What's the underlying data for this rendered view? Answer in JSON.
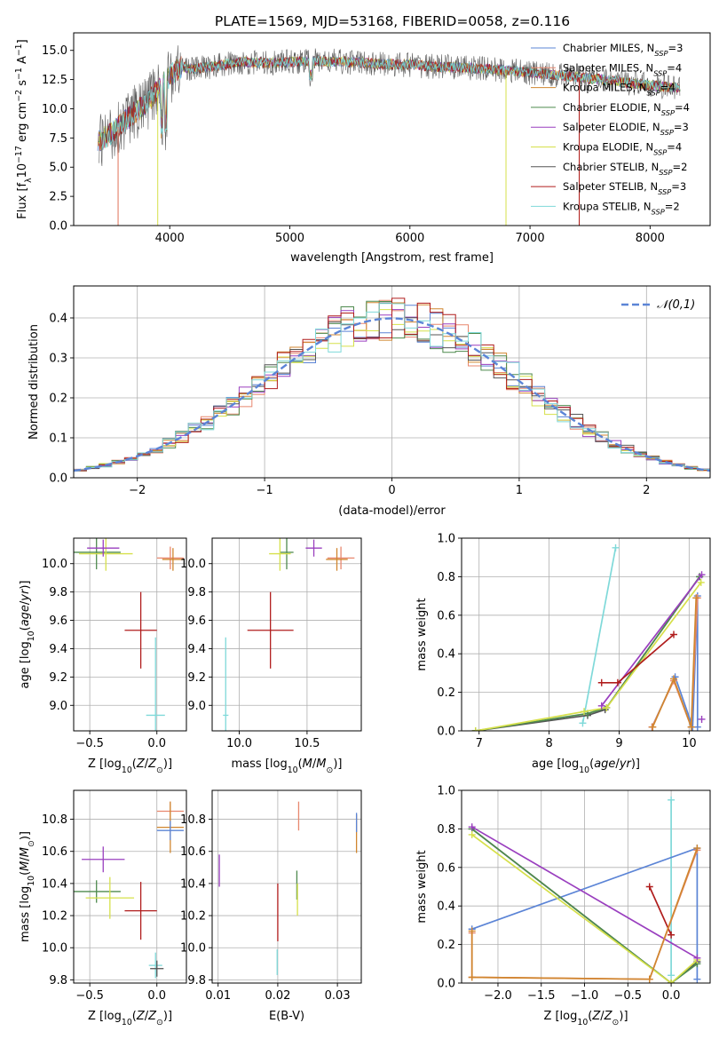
{
  "figure_title": "PLATE=1569, MJD=53168, FIBERID=0058, z=0.116",
  "chart_data": [
    {
      "id": "spectrum",
      "type": "line",
      "title": "PLATE=1569, MJD=53168, FIBERID=0058, z=0.116",
      "xlabel": "wavelength [Angstrom, rest frame]",
      "ylabel": "Flux [f_λ 10^-17 erg cm^-2 s^-1 A^-1]",
      "xlim": [
        3200,
        8500
      ],
      "ylim": [
        0,
        16.5
      ],
      "xticks": [
        4000,
        5000,
        6000,
        7000,
        8000
      ],
      "yticks": [
        0.0,
        2.5,
        5.0,
        7.5,
        10.0,
        12.5,
        15.0
      ],
      "grid": false,
      "legend_position": "top-right",
      "continuum": {
        "x": [
          3400,
          3500,
          3600,
          3700,
          3800,
          3900,
          4000,
          4100,
          4200,
          4400,
          4600,
          4800,
          5000,
          5200,
          5500,
          5800,
          6000,
          6200,
          6500,
          6800,
          7000,
          7300,
          7600,
          8000,
          8250
        ],
        "y": [
          7.2,
          7.8,
          8.7,
          9.6,
          10.4,
          11.6,
          12.8,
          13.6,
          13.4,
          13.7,
          14.0,
          13.9,
          14.0,
          14.1,
          14.0,
          13.8,
          13.8,
          13.6,
          13.5,
          13.3,
          13.1,
          12.8,
          12.5,
          12.0,
          11.8
        ]
      },
      "series": [
        {
          "name": "Chabrier MILES, N_SSP=3",
          "color": "#5b84d6"
        },
        {
          "name": "Salpeter MILES, N_SSP=4",
          "color": "#e8876e"
        },
        {
          "name": "Kroupa MILES, N_SSP=4",
          "color": "#d0862f"
        },
        {
          "name": "Chabrier ELODIE, N_SSP=4",
          "color": "#4e8a4e"
        },
        {
          "name": "Salpeter ELODIE, N_SSP=3",
          "color": "#9a3fbf"
        },
        {
          "name": "Kroupa ELODIE, N_SSP=4",
          "color": "#d6e04a"
        },
        {
          "name": "Chabrier STELIB, N_SSP=2",
          "color": "#555555"
        },
        {
          "name": "Salpeter STELIB, N_SSP=3",
          "color": "#b01c1c"
        },
        {
          "name": "Kroupa STELIB, N_SSP=2",
          "color": "#7fd9d9"
        }
      ]
    },
    {
      "id": "residuals",
      "type": "histogram",
      "xlabel": "(data-model)/error",
      "ylabel": "Normed distribution",
      "xlim": [
        -2.5,
        2.5
      ],
      "ylim": [
        0,
        0.48
      ],
      "xticks": [
        -2,
        -1,
        0,
        1,
        2
      ],
      "yticks": [
        0.0,
        0.1,
        0.2,
        0.3,
        0.4
      ],
      "grid": true,
      "legend": "𝒩(0,1)",
      "legend_position": "top-right",
      "reference_curve_color": "#5b84d6",
      "bin_width": 0.1,
      "bin_start": -2.5
    },
    {
      "id": "age_vs_Z",
      "type": "scatter",
      "xlabel": "Z [log10(Z/Z☉)]",
      "ylabel": "age  [log10(age/yr)]",
      "xlim": [
        -0.62,
        0.22
      ],
      "ylim": [
        8.82,
        10.18
      ],
      "xticks": [
        -0.5,
        0.0
      ],
      "xtick_labels": [
        "−0.5",
        "0.0"
      ],
      "yticks": [
        9.0,
        9.2,
        9.4,
        9.6,
        9.8,
        10.0
      ],
      "grid": true,
      "points": [
        {
          "x": -0.12,
          "y": 9.53,
          "xerr": 0.12,
          "yerr": 0.27,
          "color": "#b01c1c"
        },
        {
          "x": -0.01,
          "y": 8.93,
          "xerr": 0.07,
          "yerr": 0.55,
          "color": "#7fd9d9"
        },
        {
          "x": -0.45,
          "y": 10.08,
          "xerr": 0.18,
          "yerr": 0.12,
          "color": "#4e8a4e"
        },
        {
          "x": -0.38,
          "y": 10.07,
          "xerr": 0.2,
          "yerr": 0.12,
          "color": "#d6e04a"
        },
        {
          "x": -0.4,
          "y": 10.11,
          "xerr": 0.12,
          "yerr": 0.06,
          "color": "#9a3fbf"
        },
        {
          "x": 0.1,
          "y": 10.04,
          "xerr": 0.1,
          "yerr": 0.08,
          "color": "#e8876e"
        },
        {
          "x": 0.12,
          "y": 10.03,
          "xerr": 0.08,
          "yerr": 0.08,
          "color": "#d0862f"
        }
      ]
    },
    {
      "id": "age_vs_mass",
      "type": "scatter",
      "xlabel": "mass [log10(M/M☉)]",
      "ylabel": "",
      "xlim": [
        9.8,
        10.9
      ],
      "ylim": [
        8.82,
        10.18
      ],
      "xticks": [
        10.0,
        10.5
      ],
      "yticks": [
        9.0,
        9.2,
        9.4,
        9.6,
        9.8,
        10.0
      ],
      "grid": true,
      "points": [
        {
          "x": 10.23,
          "y": 9.53,
          "xerr": 0.17,
          "yerr": 0.27,
          "color": "#b01c1c"
        },
        {
          "x": 9.9,
          "y": 8.93,
          "xerr": 0.02,
          "yerr": 0.55,
          "color": "#7fd9d9"
        },
        {
          "x": 10.35,
          "y": 10.08,
          "xerr": 0.05,
          "yerr": 0.12,
          "color": "#4e8a4e"
        },
        {
          "x": 10.3,
          "y": 10.07,
          "xerr": 0.08,
          "yerr": 0.12,
          "color": "#d6e04a"
        },
        {
          "x": 10.55,
          "y": 10.11,
          "xerr": 0.06,
          "yerr": 0.06,
          "color": "#9a3fbf"
        },
        {
          "x": 10.75,
          "y": 10.04,
          "xerr": 0.1,
          "yerr": 0.08,
          "color": "#e8876e"
        },
        {
          "x": 10.72,
          "y": 10.03,
          "xerr": 0.08,
          "yerr": 0.08,
          "color": "#d0862f"
        }
      ]
    },
    {
      "id": "massweight_vs_age",
      "type": "line",
      "xlabel": "age  [log10(age/yr)]",
      "ylabel": "mass weight",
      "xlim": [
        6.75,
        10.3
      ],
      "ylim": [
        0,
        1.0
      ],
      "xticks": [
        7,
        8,
        9,
        10
      ],
      "yticks": [
        0.0,
        0.2,
        0.4,
        0.6,
        0.8,
        1.0
      ],
      "grid": true,
      "series": [
        {
          "color": "#7fd9d9",
          "x": [
            8.48,
            8.95
          ],
          "y": [
            0.04,
            0.95
          ]
        },
        {
          "color": "#555555",
          "x": [
            6.95,
            8.55,
            8.8,
            10.15
          ],
          "y": [
            0.0,
            0.08,
            0.11,
            0.8
          ]
        },
        {
          "color": "#4e8a4e",
          "x": [
            6.95,
            8.55,
            8.82,
            10.15
          ],
          "y": [
            0.0,
            0.09,
            0.12,
            0.8
          ]
        },
        {
          "color": "#d6e04a",
          "x": [
            6.95,
            8.5,
            8.82,
            10.17
          ],
          "y": [
            0.0,
            0.1,
            0.12,
            0.77
          ]
        },
        {
          "color": "#9a3fbf",
          "x": [
            8.75,
            10.18
          ],
          "y": [
            0.13,
            0.81
          ]
        },
        {
          "color": "#b01c1c",
          "x": [
            8.75,
            8.98,
            9.78
          ],
          "y": [
            0.25,
            0.25,
            0.5
          ]
        },
        {
          "color": "#5b84d6",
          "x": [
            9.47,
            9.8,
            10.05,
            10.12,
            10.12
          ],
          "y": [
            0.02,
            0.28,
            0.02,
            0.7,
            0.02
          ]
        },
        {
          "color": "#e8876e",
          "x": [
            9.47,
            9.78,
            10.03,
            10.12
          ],
          "y": [
            0.02,
            0.26,
            0.02,
            0.69
          ]
        },
        {
          "color": "#d0862f",
          "x": [
            9.48,
            9.78,
            10.03,
            10.1
          ],
          "y": [
            0.02,
            0.27,
            0.02,
            0.69
          ]
        },
        {
          "color": "#9a3fbf",
          "x": [
            10.18
          ],
          "y": [
            0.06
          ]
        }
      ]
    },
    {
      "id": "mass_vs_Z",
      "type": "scatter",
      "xlabel": "Z [log10(Z/Z☉)]",
      "ylabel": "mass [log10(M/M☉)]",
      "xlim": [
        -0.62,
        0.22
      ],
      "ylim": [
        9.78,
        10.98
      ],
      "xticks": [
        -0.5,
        0.0
      ],
      "xtick_labels": [
        "−0.5",
        "0.0"
      ],
      "yticks": [
        9.8,
        10.0,
        10.2,
        10.4,
        10.6,
        10.8
      ],
      "grid": true,
      "points": [
        {
          "x": -0.12,
          "y": 10.23,
          "xerr": 0.12,
          "yerr": 0.18,
          "color": "#b01c1c"
        },
        {
          "x": -0.01,
          "y": 9.89,
          "xerr": 0.05,
          "yerr": 0.08,
          "color": "#7fd9d9"
        },
        {
          "x": 0.0,
          "y": 9.87,
          "xerr": 0.05,
          "yerr": 0.05,
          "color": "#555555"
        },
        {
          "x": -0.45,
          "y": 10.35,
          "xerr": 0.18,
          "yerr": 0.07,
          "color": "#4e8a4e"
        },
        {
          "x": -0.35,
          "y": 10.31,
          "xerr": 0.18,
          "yerr": 0.13,
          "color": "#d6e04a"
        },
        {
          "x": -0.4,
          "y": 10.55,
          "xerr": 0.16,
          "yerr": 0.08,
          "color": "#9a3fbf"
        },
        {
          "x": 0.1,
          "y": 10.85,
          "xerr": 0.1,
          "yerr": 0.06,
          "color": "#e8876e"
        },
        {
          "x": 0.1,
          "y": 10.75,
          "xerr": 0.1,
          "yerr": 0.16,
          "color": "#d0862f"
        },
        {
          "x": 0.1,
          "y": 10.73,
          "xerr": 0.1,
          "yerr": 0.06,
          "color": "#5b84d6"
        }
      ]
    },
    {
      "id": "mass_vs_ebv",
      "type": "scatter",
      "xlabel": "E(B-V)",
      "ylabel": "",
      "xlim": [
        0.009,
        0.034
      ],
      "ylim": [
        9.78,
        10.98
      ],
      "xticks": [
        0.01,
        0.02,
        0.03
      ],
      "yticks": [
        9.8,
        10.0,
        10.2,
        10.4,
        10.6,
        10.8
      ],
      "grid": true,
      "points": [
        {
          "x": 0.0102,
          "y": 10.48,
          "xerr": 0,
          "yerr": 0.1,
          "color": "#9a3fbf"
        },
        {
          "x": 0.0199,
          "y": 9.91,
          "xerr": 0,
          "yerr": 0.08,
          "color": "#7fd9d9"
        },
        {
          "x": 0.02,
          "y": 10.22,
          "xerr": 0,
          "yerr": 0.18,
          "color": "#b01c1c"
        },
        {
          "x": 0.0232,
          "y": 10.39,
          "xerr": 0,
          "yerr": 0.09,
          "color": "#4e8a4e"
        },
        {
          "x": 0.0233,
          "y": 10.3,
          "xerr": 0,
          "yerr": 0.1,
          "color": "#d6e04a"
        },
        {
          "x": 0.0235,
          "y": 10.82,
          "xerr": 0,
          "yerr": 0.09,
          "color": "#e8876e"
        },
        {
          "x": 0.0332,
          "y": 10.71,
          "xerr": 0,
          "yerr": 0.12,
          "color": "#d0862f"
        },
        {
          "x": 0.0332,
          "y": 10.78,
          "xerr": 0,
          "yerr": 0.06,
          "color": "#5b84d6"
        }
      ]
    },
    {
      "id": "massweight_vs_Z",
      "type": "line",
      "xlabel": "Z [log10(Z/Z☉)]",
      "ylabel": "mass weight",
      "xlim": [
        -2.42,
        0.45
      ],
      "ylim": [
        0,
        1.0
      ],
      "xticks": [
        -2.0,
        -1.5,
        -1.0,
        -0.5,
        0.0
      ],
      "xtick_labels": [
        "−2.0",
        "−1.5",
        "−1.0",
        "−0.5",
        "0.0"
      ],
      "yticks": [
        0.0,
        0.2,
        0.4,
        0.6,
        0.8,
        1.0
      ],
      "grid": true,
      "series": [
        {
          "color": "#7fd9d9",
          "x": [
            0.0,
            0.0
          ],
          "y": [
            0.04,
            0.95
          ]
        },
        {
          "color": "#5b84d6",
          "x": [
            -2.3,
            0.3,
            0.3
          ],
          "y": [
            0.28,
            0.7,
            0.02
          ]
        },
        {
          "color": "#555555",
          "x": [
            -2.3,
            0.0,
            0.3
          ],
          "y": [
            0.8,
            0.0,
            0.11
          ]
        },
        {
          "color": "#4e8a4e",
          "x": [
            -2.3,
            0.0,
            0.3
          ],
          "y": [
            0.8,
            0.0,
            0.1
          ]
        },
        {
          "color": "#d6e04a",
          "x": [
            -2.3,
            0.0,
            0.3
          ],
          "y": [
            0.77,
            0.0,
            0.12
          ]
        },
        {
          "color": "#9a3fbf",
          "x": [
            -2.3,
            0.3
          ],
          "y": [
            0.81,
            0.13
          ]
        },
        {
          "color": "#b01c1c",
          "x": [
            -0.25,
            0.0
          ],
          "y": [
            0.5,
            0.25
          ]
        },
        {
          "color": "#e8876e",
          "x": [
            -2.3,
            -2.3,
            -0.25,
            0.3
          ],
          "y": [
            0.26,
            0.03,
            0.02,
            0.69
          ]
        },
        {
          "color": "#d0862f",
          "x": [
            -2.3,
            -2.3,
            -0.25,
            0.3
          ],
          "y": [
            0.27,
            0.03,
            0.02,
            0.7
          ]
        }
      ]
    }
  ]
}
